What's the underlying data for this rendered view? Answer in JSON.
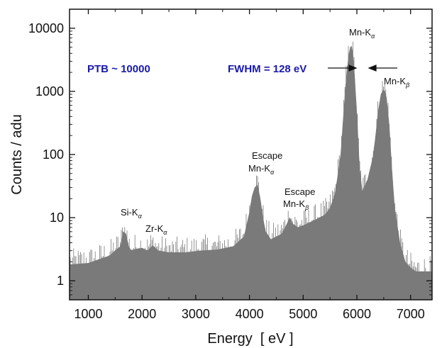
{
  "chart_data": {
    "type": "area",
    "title": "",
    "xlabel": "Energy  [ eV ]",
    "ylabel": "Counts / adu",
    "xlim": [
      650,
      7400
    ],
    "ylim": [
      0.5,
      20000
    ],
    "yscale": "log",
    "x_ticks": [
      1000,
      2000,
      3000,
      4000,
      5000,
      6000,
      7000
    ],
    "x_tick_labels": [
      "1000",
      "2000",
      "3000",
      "4000",
      "5000",
      "6000",
      "7000"
    ],
    "y_ticks": [
      1,
      10,
      100,
      1000,
      10000
    ],
    "y_tick_labels": [
      "1",
      "10",
      "100",
      "1000",
      "10000"
    ],
    "fill_color": "#7a7a7a",
    "annotation_color": "#1a1aa8",
    "grid": false,
    "series": [
      {
        "x": [
          650,
          1000,
          1400,
          1500,
          1600,
          1650,
          1700,
          1750,
          1800,
          1900,
          2000,
          2100,
          2200,
          2300,
          2500,
          2800,
          3100,
          3400,
          3700,
          3900,
          4000,
          4050,
          4100,
          4150,
          4200,
          4250,
          4300,
          4400,
          4500,
          4600,
          4700,
          4750,
          4800,
          4900,
          5000,
          5200,
          5400,
          5500,
          5600,
          5700,
          5750,
          5800,
          5850,
          5880,
          5900,
          5920,
          5950,
          6000,
          6050,
          6100,
          6200,
          6300,
          6350,
          6400,
          6450,
          6490,
          6520,
          6550,
          6600,
          6650,
          6700,
          6800,
          6900,
          7000,
          7100,
          7200,
          7400
        ],
        "y": [
          1.8,
          1.9,
          2.5,
          3.0,
          3.5,
          6.0,
          5.5,
          3.5,
          3.0,
          3.2,
          3.3,
          3.0,
          3.6,
          3.0,
          2.8,
          2.8,
          3.0,
          3.1,
          3.5,
          5.0,
          12.0,
          22.0,
          30.0,
          33.0,
          20.0,
          10.0,
          6.0,
          4.5,
          5.0,
          5.5,
          8.0,
          10.0,
          8.0,
          7.0,
          7.5,
          9.0,
          11.0,
          14.0,
          25.0,
          100.0,
          400.0,
          1500.0,
          3800.0,
          5000.0,
          5200.0,
          4200.0,
          2200.0,
          420.0,
          60.0,
          26.0,
          40.0,
          90.0,
          200.0,
          500.0,
          900.0,
          1050.0,
          1000.0,
          800.0,
          300.0,
          60.0,
          15.0,
          4.0,
          2.0,
          1.6,
          1.4,
          1.4,
          1.4
        ]
      }
    ],
    "annotations": {
      "ptb": "PTB ~ 10000",
      "fwhm": "FWHM = 128 eV",
      "mn_ka": {
        "main": "Mn-K",
        "sub": "α"
      },
      "mn_kb": {
        "main": "Mn-K",
        "sub": "β"
      },
      "esc_ka": {
        "line1": "Escape",
        "main": "Mn-K",
        "sub": "α"
      },
      "esc_kb": {
        "line1": "Escape",
        "main": "Mn-K",
        "sub": "β"
      },
      "si_ka": {
        "main": "Si-K",
        "sub": "α"
      },
      "zr_ka": {
        "main": "Zr-K",
        "sub": "α"
      }
    }
  }
}
